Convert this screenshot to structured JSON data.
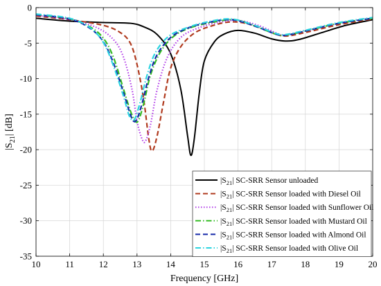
{
  "chart_data": {
    "type": "line",
    "xlabel": "Frequency [GHz]",
    "ylabel": {
      "pre": "|S",
      "sub": "21",
      "post": "| [dB]"
    },
    "xlim": [
      10,
      20
    ],
    "ylim": [
      -35,
      0
    ],
    "xticks": [
      10,
      11,
      12,
      13,
      14,
      15,
      16,
      17,
      18,
      19,
      20
    ],
    "yticks": [
      0,
      -5,
      -10,
      -15,
      -20,
      -25,
      -30,
      -35
    ],
    "grid": true,
    "legend_position": "bottom-right",
    "legend_label_prefix": {
      "pre": "|S",
      "sub": "21",
      "post": "|"
    },
    "series": [
      {
        "name": "SC-SRR Sensor unloaded",
        "color": "#000000",
        "dash": "solid",
        "x": [
          10,
          11,
          12,
          12.8,
          13.2,
          13.6,
          14.0,
          14.3,
          14.5,
          14.6,
          14.7,
          14.85,
          15.0,
          15.3,
          15.6,
          16.0,
          16.5,
          17.0,
          17.4,
          17.8,
          18.5,
          19.2,
          20
        ],
        "y": [
          -1.5,
          -1.9,
          -2.1,
          -2.2,
          -2.7,
          -3.8,
          -6.5,
          -11.5,
          -18.0,
          -20.8,
          -18.5,
          -12.0,
          -7.5,
          -4.8,
          -3.7,
          -3.2,
          -3.6,
          -4.4,
          -4.7,
          -4.5,
          -3.5,
          -2.5,
          -1.7
        ]
      },
      {
        "name": "SC-SRR Sensor loaded with Diesel Oil",
        "color": "#b03a1e",
        "dash": "dashed",
        "x": [
          10,
          11,
          12,
          12.5,
          12.8,
          13.0,
          13.2,
          13.35,
          13.45,
          13.6,
          13.8,
          14.0,
          14.3,
          14.7,
          15.2,
          15.8,
          16.4,
          17.0,
          17.4,
          18.0,
          19.0,
          20
        ],
        "y": [
          -1.2,
          -1.7,
          -2.5,
          -3.5,
          -5.0,
          -8.0,
          -13.0,
          -18.5,
          -20.2,
          -18.0,
          -13.0,
          -8.5,
          -5.5,
          -3.6,
          -2.6,
          -2.0,
          -2.4,
          -3.5,
          -4.0,
          -3.5,
          -2.4,
          -1.6
        ]
      },
      {
        "name": "SC-SRR Sensor loaded with Sunflower Oil",
        "color": "#b13be8",
        "dash": "dotted",
        "x": [
          10,
          11,
          11.8,
          12.3,
          12.6,
          12.85,
          13.0,
          13.15,
          13.25,
          13.4,
          13.6,
          13.9,
          14.3,
          14.8,
          15.4,
          16.0,
          16.6,
          17.2,
          17.4,
          18.0,
          19.0,
          20
        ],
        "y": [
          -1.1,
          -1.7,
          -2.8,
          -4.5,
          -7.0,
          -11.5,
          -16.0,
          -18.5,
          -18.8,
          -16.5,
          -11.5,
          -7.0,
          -4.2,
          -2.9,
          -2.1,
          -1.8,
          -2.5,
          -3.7,
          -3.9,
          -3.3,
          -2.2,
          -1.5
        ]
      },
      {
        "name": "SC-SRR Sensor loaded with Mustard Oil",
        "color": "#33bb22",
        "dash": "dashdot",
        "x": [
          10,
          11,
          11.6,
          12.0,
          12.3,
          12.6,
          12.8,
          12.95,
          13.05,
          13.2,
          13.4,
          13.7,
          14.1,
          14.6,
          15.2,
          15.9,
          16.5,
          17.1,
          17.4,
          18.0,
          19.0,
          20
        ],
        "y": [
          -1.0,
          -1.6,
          -2.7,
          -4.3,
          -7.0,
          -11.5,
          -14.5,
          -16.0,
          -15.8,
          -13.5,
          -9.5,
          -6.2,
          -4.0,
          -2.8,
          -2.1,
          -1.7,
          -2.6,
          -3.7,
          -3.9,
          -3.3,
          -2.2,
          -1.5
        ]
      },
      {
        "name": "SC-SRR Sensor loaded with Almond Oil",
        "color": "#1428a8",
        "dash": "dashed",
        "x": [
          10,
          11,
          11.6,
          12.0,
          12.3,
          12.6,
          12.8,
          12.9,
          13.0,
          13.15,
          13.35,
          13.6,
          14.0,
          14.5,
          15.1,
          15.8,
          16.5,
          17.1,
          17.4,
          18.0,
          19.0,
          20
        ],
        "y": [
          -1.0,
          -1.6,
          -2.9,
          -4.8,
          -7.8,
          -12.0,
          -15.0,
          -16.0,
          -15.7,
          -13.5,
          -9.8,
          -6.6,
          -4.2,
          -2.9,
          -2.1,
          -1.7,
          -2.6,
          -3.7,
          -3.9,
          -3.3,
          -2.2,
          -1.5
        ]
      },
      {
        "name": "SC-SRR Sensor loaded with Olive Oil",
        "color": "#2ad4e0",
        "dash": "dashdot",
        "x": [
          10,
          11,
          11.6,
          12.0,
          12.3,
          12.6,
          12.75,
          12.85,
          12.95,
          13.1,
          13.3,
          13.55,
          13.95,
          14.5,
          15.1,
          15.8,
          16.5,
          17.1,
          17.4,
          18.0,
          19.0,
          20
        ],
        "y": [
          -0.9,
          -1.5,
          -2.8,
          -4.9,
          -8.2,
          -12.5,
          -15.0,
          -15.8,
          -15.5,
          -13.2,
          -9.5,
          -6.3,
          -4.0,
          -2.8,
          -2.0,
          -1.6,
          -2.5,
          -3.6,
          -3.8,
          -3.2,
          -2.1,
          -1.4
        ]
      }
    ]
  }
}
